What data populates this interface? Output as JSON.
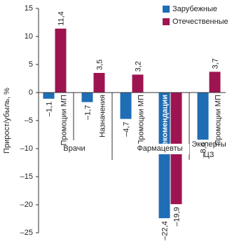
{
  "chart_data": {
    "type": "bar",
    "y_label": "Прирост/убыль, %",
    "categories": [
      "Промоции МП",
      "Назначения",
      "Промоции МП",
      "Рекомендации",
      "Промоции МП"
    ],
    "groups": [
      "Врачи",
      "Фармацевты",
      "Эксперты ЦЗ"
    ],
    "series": [
      {
        "name": "Зарубежные",
        "color": "#1f6db4",
        "values": [
          -1.1,
          -1.7,
          -4.7,
          -22.4,
          -8.4
        ],
        "value_labels": [
          "–1,1",
          "–1,7",
          "–4,7",
          "–22,4",
          "–8,4"
        ]
      },
      {
        "name": "Отечественные",
        "color": "#9e1450",
        "values": [
          11.4,
          3.5,
          3.2,
          -19.9,
          3.7
        ],
        "value_labels": [
          "11,4",
          "3,5",
          "3,2",
          "–19,9",
          "3,7"
        ]
      }
    ],
    "ylim": [
      -25,
      15
    ],
    "yticks": [
      {
        "value": -25,
        "label": "–25"
      },
      {
        "value": -20,
        "label": "–20"
      },
      {
        "value": -15,
        "label": "–15"
      },
      {
        "value": -10,
        "label": "–10"
      },
      {
        "value": -5,
        "label": "–5"
      },
      0,
      5,
      10,
      15
    ],
    "legend": "top-right"
  }
}
